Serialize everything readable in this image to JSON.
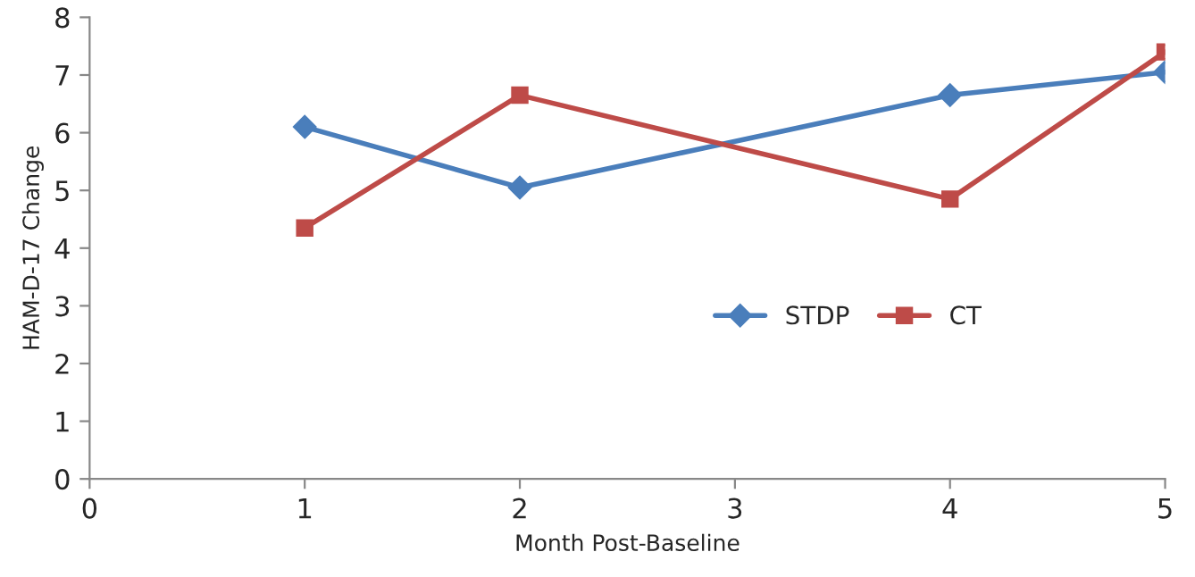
{
  "chart_data": {
    "type": "line",
    "xlabel": "Month Post-Baseline",
    "ylabel": "HAM-D-17 Change",
    "x": [
      1,
      2,
      4,
      5
    ],
    "series": [
      {
        "name": "STDP",
        "color": "#4a7ebb",
        "values": [
          6.1,
          5.05,
          6.65,
          7.05
        ],
        "marker": "diamond"
      },
      {
        "name": "CT",
        "color": "#be4b48",
        "values": [
          4.35,
          6.65,
          4.85,
          7.4
        ],
        "marker": "square"
      }
    ],
    "xlim": [
      0,
      5
    ],
    "xticks": [
      0,
      1,
      2,
      3,
      4,
      5
    ],
    "ylim": [
      0,
      8
    ],
    "yticks": [
      0,
      1,
      2,
      3,
      4,
      5,
      6,
      7,
      8
    ],
    "grid": false,
    "legend": "right",
    "line_style": "solid"
  }
}
